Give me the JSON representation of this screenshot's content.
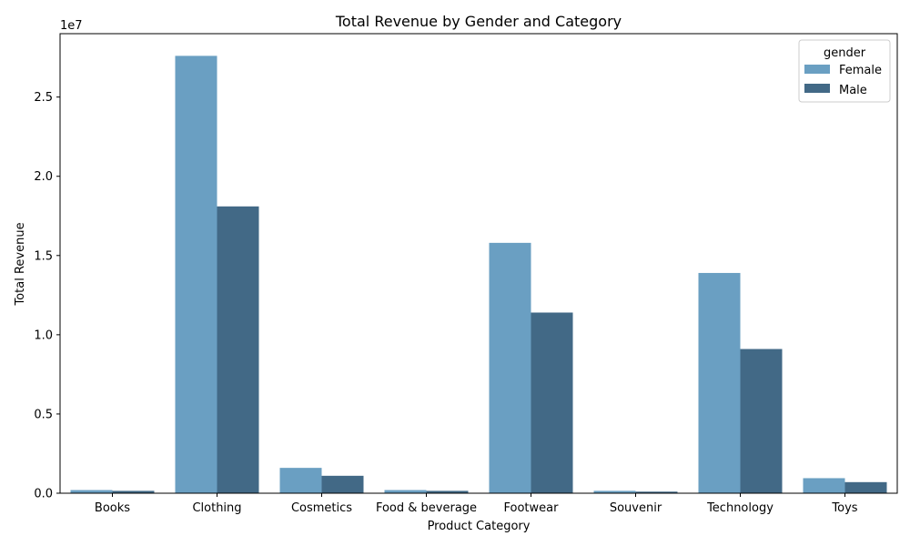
{
  "chart_data": {
    "type": "bar",
    "title": "Total Revenue by Gender and Category",
    "xlabel": "Product Category",
    "ylabel": "Total Revenue",
    "y_scale_label": "1e7",
    "y_scale": 10000000,
    "ylim": [
      0,
      2.9
    ],
    "yticks": [
      0.0,
      0.5,
      1.0,
      1.5,
      2.0,
      2.5
    ],
    "ytick_labels": [
      "0.0",
      "0.5",
      "1.0",
      "1.5",
      "2.0",
      "2.5"
    ],
    "categories": [
      "Books",
      "Clothing",
      "Cosmetics",
      "Food & beverage",
      "Footwear",
      "Souvenir",
      "Technology",
      "Toys"
    ],
    "series": [
      {
        "name": "Female",
        "color": "#6a9fc2",
        "values": [
          0.02,
          2.76,
          0.16,
          0.02,
          1.58,
          0.015,
          1.39,
          0.095
        ]
      },
      {
        "name": "Male",
        "color": "#426986",
        "values": [
          0.015,
          1.81,
          0.11,
          0.015,
          1.14,
          0.01,
          0.91,
          0.07
        ]
      }
    ],
    "legend": {
      "title": "gender",
      "placement": "top-right"
    },
    "grid": false
  }
}
